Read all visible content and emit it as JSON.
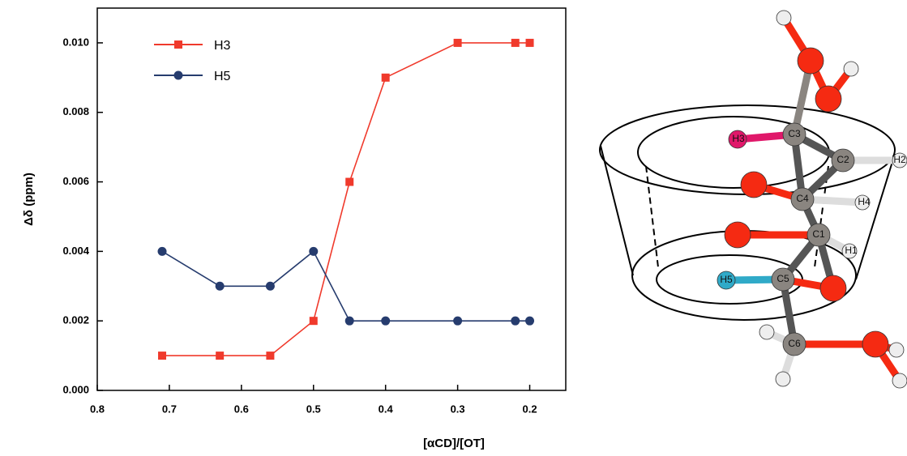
{
  "chart_data": {
    "type": "line",
    "x_label": "[αCD]/[OT]",
    "y_label": "Δδ (ppm)",
    "x": [
      0.71,
      0.63,
      0.56,
      0.5,
      0.45,
      0.4,
      0.3,
      0.22,
      0.2
    ],
    "series": [
      {
        "name": "H3",
        "color": "#f03a2c",
        "marker": "square",
        "values": [
          0.001,
          0.001,
          0.001,
          0.002,
          0.006,
          0.009,
          0.01,
          0.01,
          0.01
        ]
      },
      {
        "name": "H5",
        "color": "#263c6e",
        "marker": "circle",
        "values": [
          0.004,
          0.003,
          0.003,
          0.004,
          0.002,
          0.002,
          0.002,
          0.002,
          0.002
        ]
      }
    ],
    "xlim": [
      0.8,
      0.15
    ],
    "xticks": [
      0.8,
      0.7,
      0.6,
      0.5,
      0.4,
      0.3,
      0.2
    ],
    "ylim": [
      0,
      0.011
    ],
    "yticks": [
      {
        "value": 0,
        "label": "0.000"
      },
      0.002,
      0.004,
      0.006,
      0.008,
      {
        "value": 0.01,
        "label": "0.010"
      }
    ],
    "grid": false,
    "legend": "upper left"
  },
  "diagram": {
    "labels": [
      "H3",
      "C3",
      "C2",
      "H2",
      "C4",
      "H4",
      "C1",
      "H1",
      "H5",
      "C5",
      "C6"
    ]
  }
}
